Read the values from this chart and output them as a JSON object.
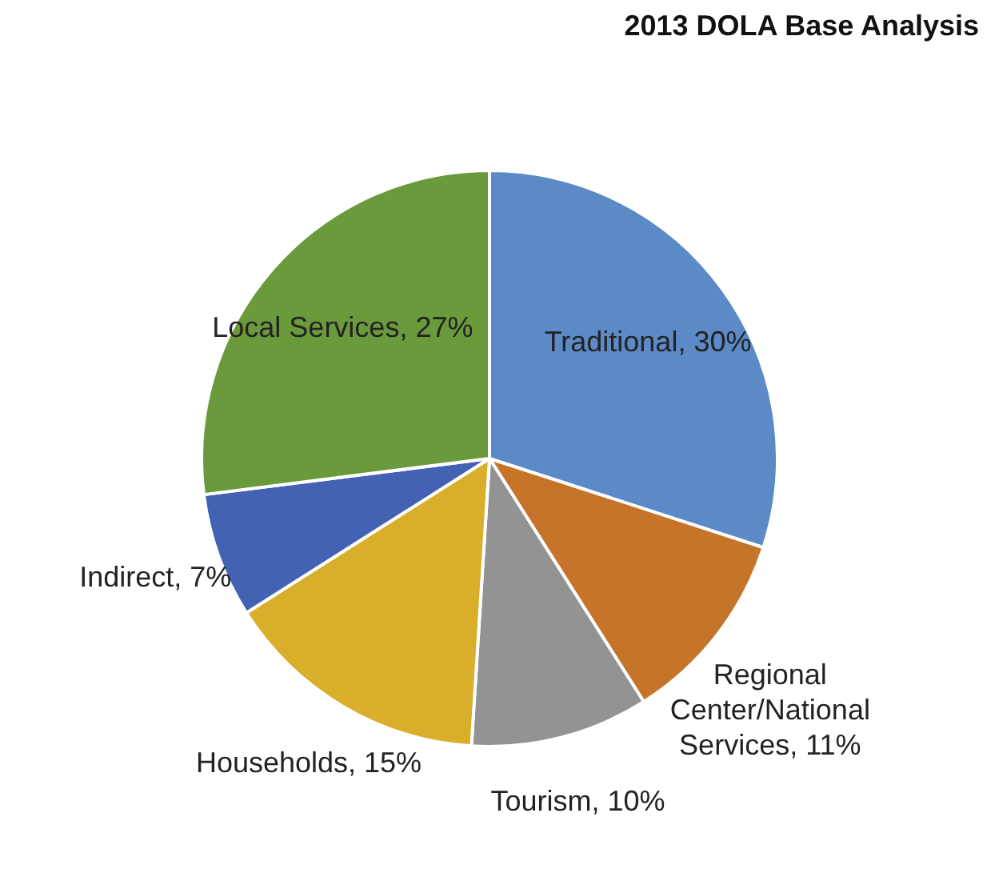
{
  "chart_data": {
    "type": "pie",
    "title": "2013 DOLA Base Analysis",
    "categories": [
      "Traditional",
      "Regional Center/National Services",
      "Tourism",
      "Households",
      "Indirect",
      "Local Services"
    ],
    "values": [
      30,
      11,
      10,
      15,
      7,
      27
    ],
    "colors": [
      "#5b8ac6",
      "#c5742a",
      "#939393",
      "#d8ae2a",
      "#4462b3",
      "#6a9a3c"
    ],
    "value_labels": [
      "30%",
      "11%",
      "10%",
      "15%",
      "7%",
      "27%"
    ],
    "legend": false
  }
}
